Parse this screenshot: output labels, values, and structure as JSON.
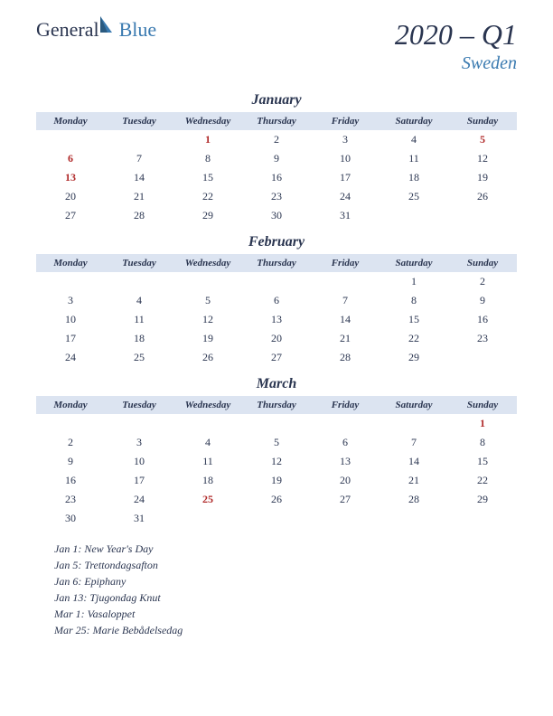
{
  "logo": {
    "general": "General",
    "blue": "Blue"
  },
  "title": {
    "year_quarter": "2020 – Q1",
    "country": "Sweden"
  },
  "colors": {
    "dark": "#2a3550",
    "accent": "#3a7ab0",
    "header_bg": "#dce4f1",
    "holiday": "#b02a2a",
    "background": "#ffffff"
  },
  "weekdays": [
    "Monday",
    "Tuesday",
    "Wednesday",
    "Thursday",
    "Friday",
    "Saturday",
    "Sunday"
  ],
  "months": [
    {
      "name": "January",
      "weeks": [
        [
          null,
          null,
          {
            "d": 1,
            "h": true
          },
          {
            "d": 2
          },
          {
            "d": 3
          },
          {
            "d": 4
          },
          {
            "d": 5,
            "h": true
          }
        ],
        [
          {
            "d": 6,
            "h": true
          },
          {
            "d": 7
          },
          {
            "d": 8
          },
          {
            "d": 9
          },
          {
            "d": 10
          },
          {
            "d": 11
          },
          {
            "d": 12
          }
        ],
        [
          {
            "d": 13,
            "h": true
          },
          {
            "d": 14
          },
          {
            "d": 15
          },
          {
            "d": 16
          },
          {
            "d": 17
          },
          {
            "d": 18
          },
          {
            "d": 19
          }
        ],
        [
          {
            "d": 20
          },
          {
            "d": 21
          },
          {
            "d": 22
          },
          {
            "d": 23
          },
          {
            "d": 24
          },
          {
            "d": 25
          },
          {
            "d": 26
          }
        ],
        [
          {
            "d": 27
          },
          {
            "d": 28
          },
          {
            "d": 29
          },
          {
            "d": 30
          },
          {
            "d": 31
          },
          null,
          null
        ]
      ]
    },
    {
      "name": "February",
      "weeks": [
        [
          null,
          null,
          null,
          null,
          null,
          {
            "d": 1
          },
          {
            "d": 2
          }
        ],
        [
          {
            "d": 3
          },
          {
            "d": 4
          },
          {
            "d": 5
          },
          {
            "d": 6
          },
          {
            "d": 7
          },
          {
            "d": 8
          },
          {
            "d": 9
          }
        ],
        [
          {
            "d": 10
          },
          {
            "d": 11
          },
          {
            "d": 12
          },
          {
            "d": 13
          },
          {
            "d": 14
          },
          {
            "d": 15
          },
          {
            "d": 16
          }
        ],
        [
          {
            "d": 17
          },
          {
            "d": 18
          },
          {
            "d": 19
          },
          {
            "d": 20
          },
          {
            "d": 21
          },
          {
            "d": 22
          },
          {
            "d": 23
          }
        ],
        [
          {
            "d": 24
          },
          {
            "d": 25
          },
          {
            "d": 26
          },
          {
            "d": 27
          },
          {
            "d": 28
          },
          {
            "d": 29
          },
          null
        ]
      ]
    },
    {
      "name": "March",
      "weeks": [
        [
          null,
          null,
          null,
          null,
          null,
          null,
          {
            "d": 1,
            "h": true
          }
        ],
        [
          {
            "d": 2
          },
          {
            "d": 3
          },
          {
            "d": 4
          },
          {
            "d": 5
          },
          {
            "d": 6
          },
          {
            "d": 7
          },
          {
            "d": 8
          }
        ],
        [
          {
            "d": 9
          },
          {
            "d": 10
          },
          {
            "d": 11
          },
          {
            "d": 12
          },
          {
            "d": 13
          },
          {
            "d": 14
          },
          {
            "d": 15
          }
        ],
        [
          {
            "d": 16
          },
          {
            "d": 17
          },
          {
            "d": 18
          },
          {
            "d": 19
          },
          {
            "d": 20
          },
          {
            "d": 21
          },
          {
            "d": 22
          }
        ],
        [
          {
            "d": 23
          },
          {
            "d": 24
          },
          {
            "d": 25,
            "h": true
          },
          {
            "d": 26
          },
          {
            "d": 27
          },
          {
            "d": 28
          },
          {
            "d": 29
          }
        ],
        [
          {
            "d": 30
          },
          {
            "d": 31
          },
          null,
          null,
          null,
          null,
          null
        ]
      ]
    }
  ],
  "holidays": [
    "Jan 1: New Year's Day",
    "Jan 5: Trettondagsafton",
    "Jan 6: Epiphany",
    "Jan 13: Tjugondag Knut",
    "Mar 1: Vasaloppet",
    "Mar 25: Marie Bebådelsedag"
  ]
}
